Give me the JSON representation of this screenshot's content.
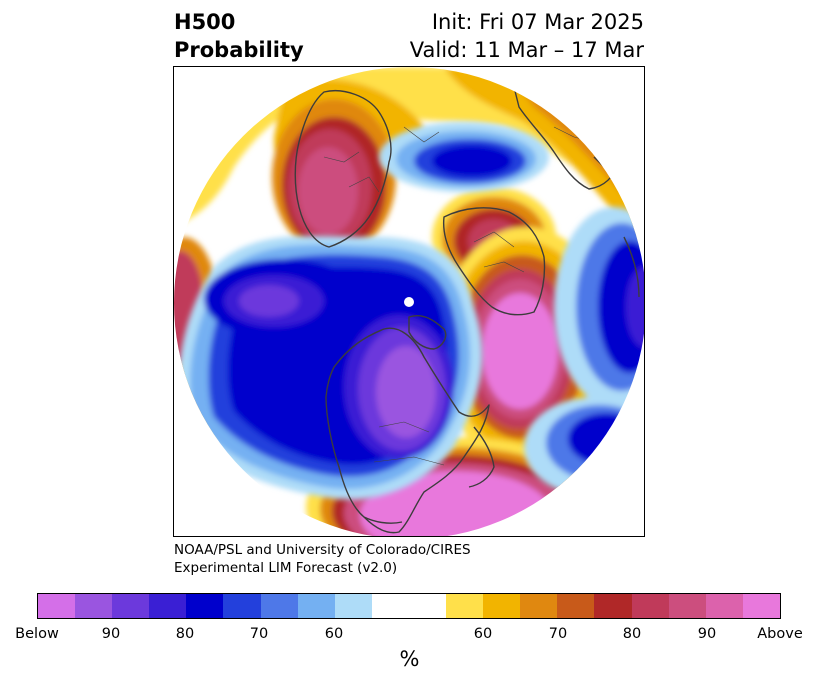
{
  "header": {
    "variable": "H500",
    "product": "Probability",
    "init": "Init: Fri 07 Mar 2025",
    "valid": "Valid: 11 Mar – 17 Mar"
  },
  "credit": {
    "line1": "NOAA/PSL and University of Colorado/CIRES",
    "line2": "Experimental LIM Forecast (v2.0)"
  },
  "colorbar": {
    "unit": "%",
    "colors": [
      "#d46fe8",
      "#9a55e0",
      "#6c39dc",
      "#3a1fd4",
      "#0000cc",
      "#2340dc",
      "#4e78e8",
      "#74b0f2",
      "#aedcf8",
      "#ffffff",
      "#ffe04a",
      "#f2b400",
      "#e08810",
      "#c85a1a",
      "#b02828",
      "#c03a5a",
      "#cc4e7e",
      "#dc62ac",
      "#e878dc"
    ],
    "tick_labels": [
      "Below",
      "90",
      "80",
      "70",
      "60",
      "60",
      "70",
      "80",
      "90",
      "Above"
    ]
  }
}
